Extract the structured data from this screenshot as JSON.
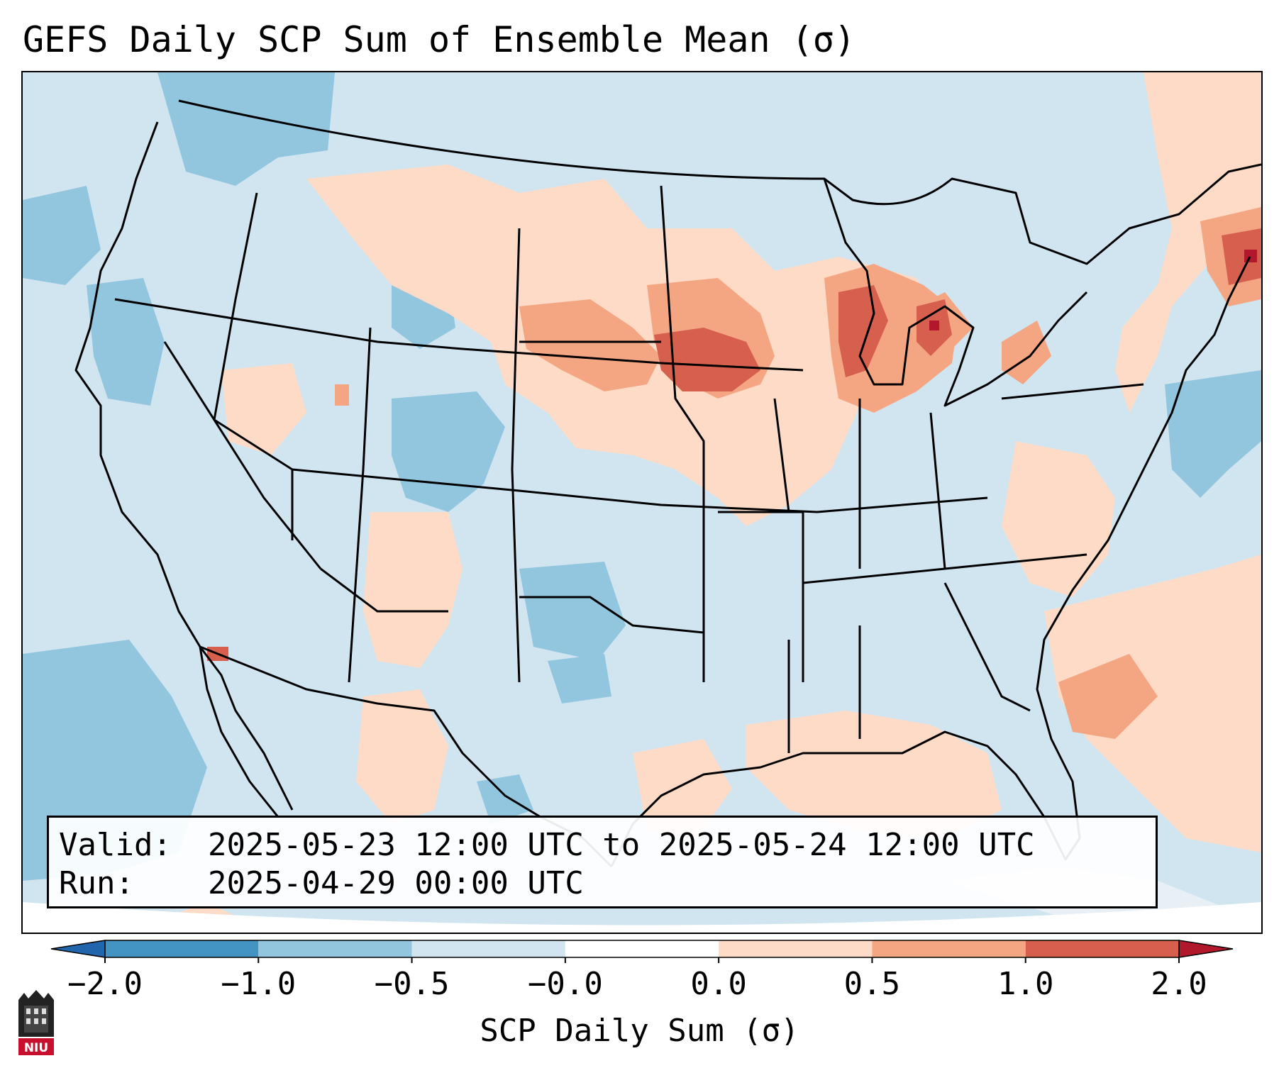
{
  "title": "GEFS Daily SCP Sum of Ensemble Mean (σ)",
  "info": {
    "valid_key": "Valid:",
    "valid_value": "2025-05-23 12:00 UTC to 2025-05-24 12:00 UTC",
    "run_key": "Run:",
    "run_value": "2025-04-29 00:00 UTC"
  },
  "colorbar": {
    "label": "SCP Daily Sum (σ)",
    "tick_labels": [
      "−2.0",
      "−1.0",
      "−0.5",
      "−0.0",
      "0.0",
      "0.5",
      "1.0",
      "2.0"
    ],
    "bins": [
      {
        "range": "< -2.0",
        "color": "#2166ac"
      },
      {
        "range": "-2.0 to -1.0",
        "color": "#4393c3"
      },
      {
        "range": "-1.0 to -0.5",
        "color": "#92c5de"
      },
      {
        "range": "-0.5 to -0.0",
        "color": "#d1e5f0"
      },
      {
        "range": "-0.0 to 0.0",
        "color": "#ffffff"
      },
      {
        "range": "0.0 to 0.5",
        "color": "#fddbc7"
      },
      {
        "range": "0.5 to 1.0",
        "color": "#f4a582"
      },
      {
        "range": "1.0 to 2.0",
        "color": "#d6604d"
      },
      {
        "range": "> 2.0",
        "color": "#b2182b"
      }
    ]
  },
  "logo": {
    "text": "NIU",
    "color": "#c8102e"
  },
  "map": {
    "background_color": "#d1e5f0",
    "regions": [
      {
        "name": "upper-midwest-peak",
        "value_sigma": 1.0
      },
      {
        "name": "michigan-peak",
        "value_sigma": 1.2
      },
      {
        "name": "new-england-peak",
        "value_sigma": 1.3
      },
      {
        "name": "southwest-colorado",
        "value_sigma": -0.6
      },
      {
        "name": "pacific-offshore",
        "value_sigma": -0.6
      }
    ]
  }
}
